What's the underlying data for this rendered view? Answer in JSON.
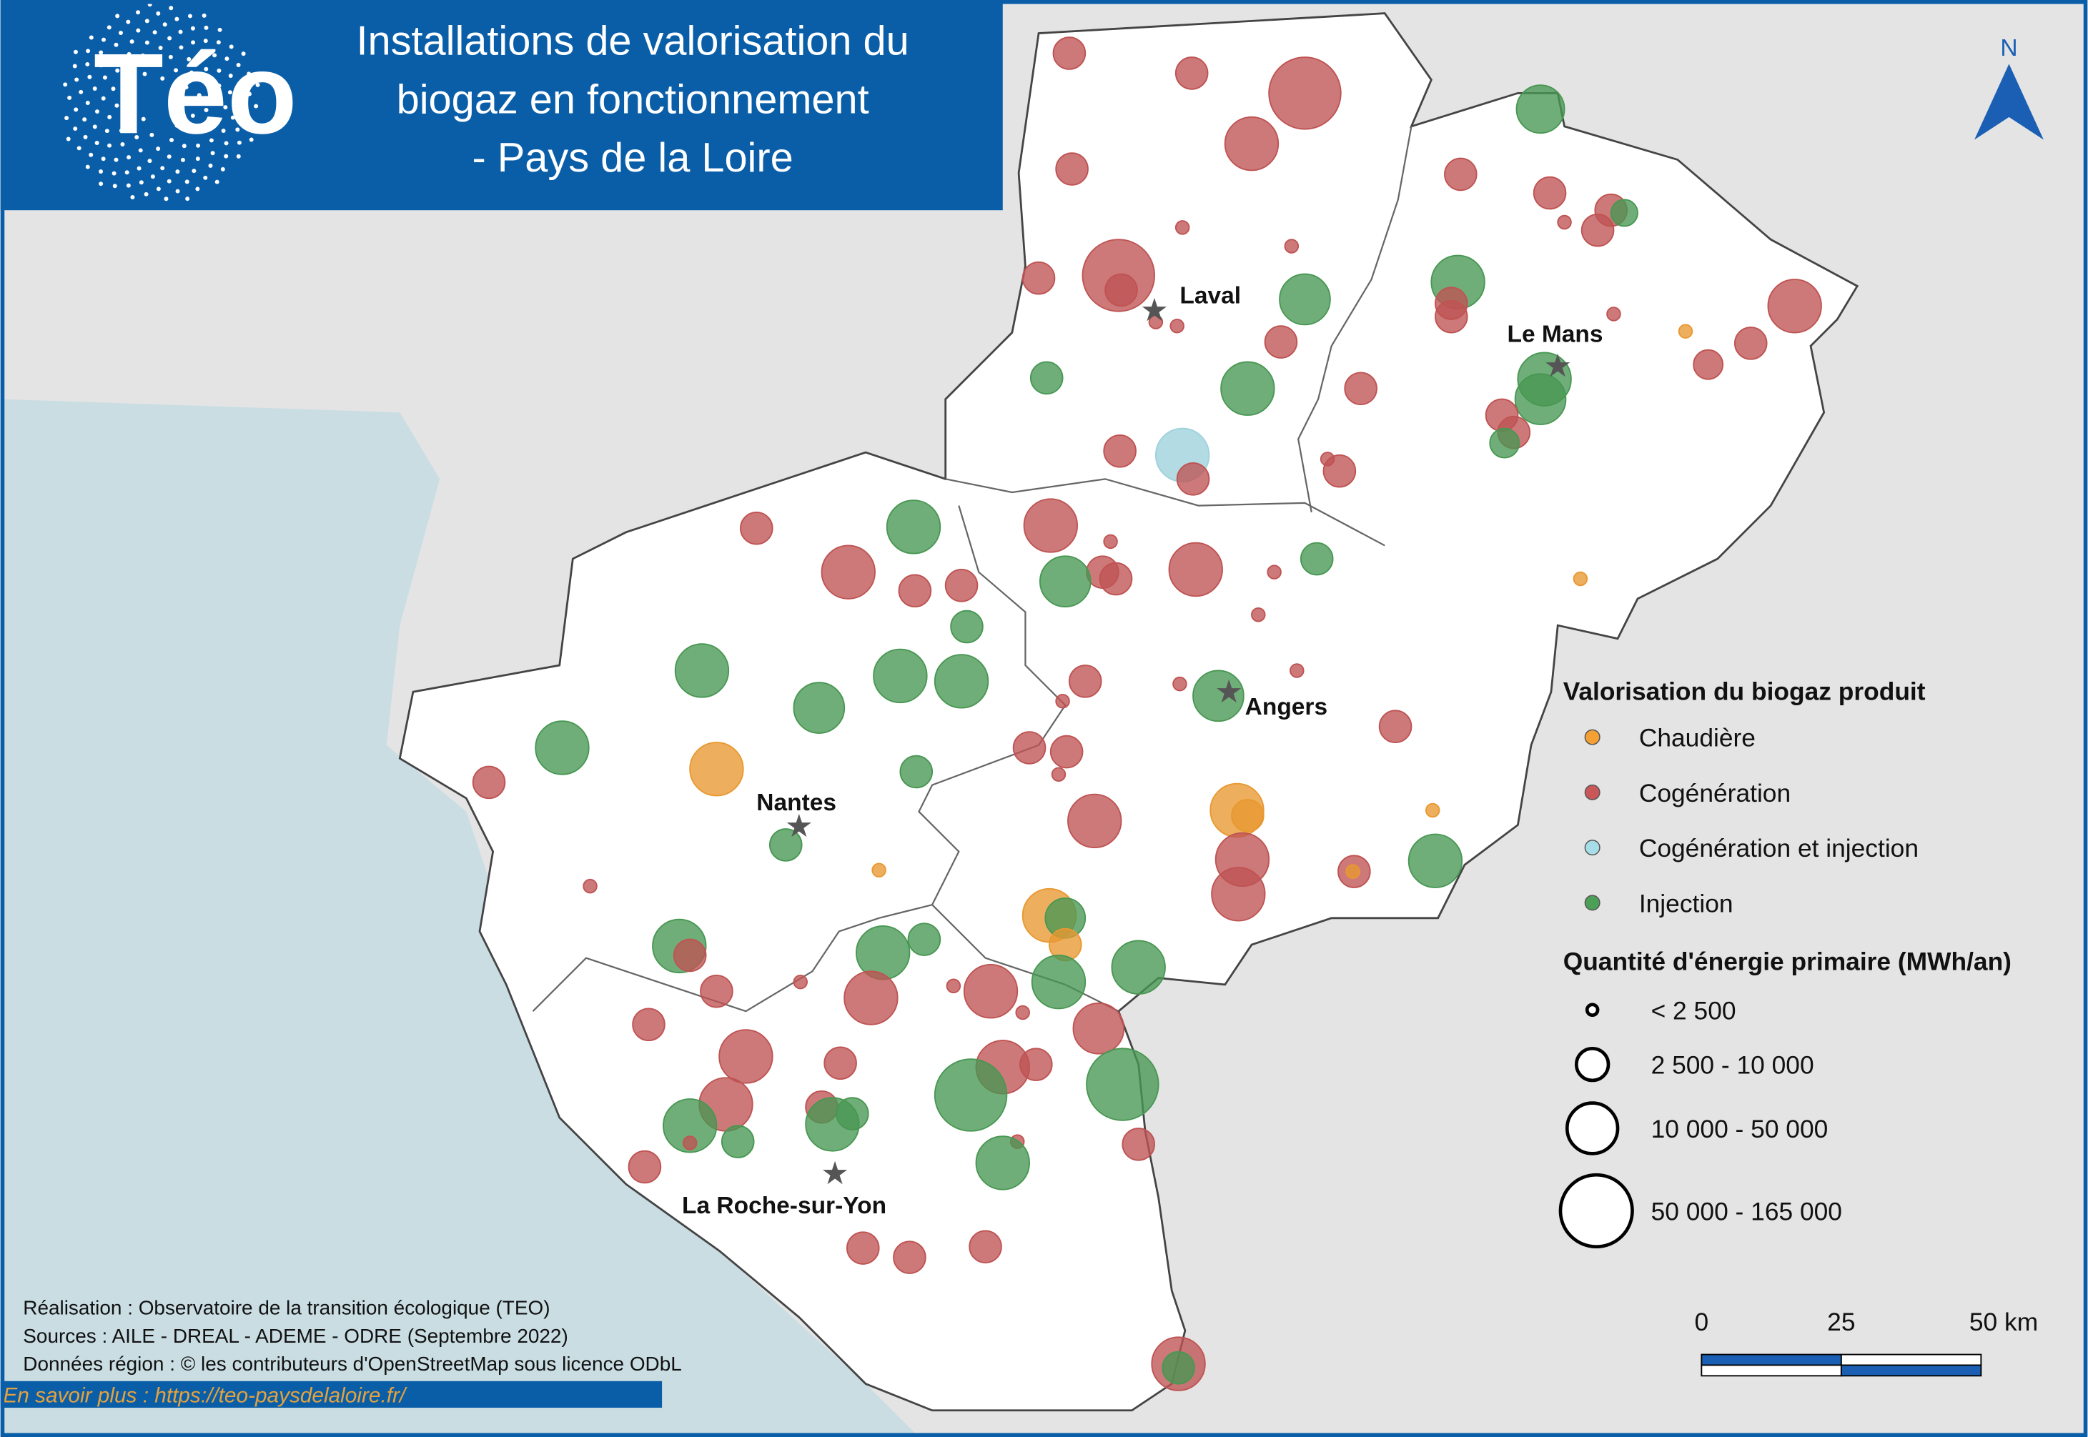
{
  "header": {
    "logo": "Téo",
    "title_lines": [
      "Installations de valorisation du",
      "biogaz en fonctionnement",
      "- Pays de la Loire"
    ]
  },
  "north": "N",
  "cities": [
    "Laval",
    "Le Mans",
    "Angers",
    "Nantes",
    "La Roche-sur-Yon"
  ],
  "legend": {
    "type_title": "Valorisation du biogaz produit",
    "types": [
      {
        "label": "Chaudière",
        "color": "#f5a033"
      },
      {
        "label": "Cogénération",
        "color": "#c95757"
      },
      {
        "label": "Cogénération et injection",
        "color": "#a6dde8"
      },
      {
        "label": "Injection",
        "color": "#4c9f57"
      }
    ],
    "size_title": "Quantité d'énergie primaire (MWh/an)",
    "sizes": [
      "< 2 500",
      "2 500 - 10 000",
      "10 000 - 50 000",
      "50 000 - 165 000"
    ]
  },
  "credits": [
    "Réalisation : Observatoire de la transition écologique (TEO)",
    "Sources : AILE - DREAL - ADEME - ODRE (Septembre 2022)",
    "Données région : © les contributeurs d'OpenStreetMap sous licence ODbL"
  ],
  "link": "En savoir plus : https://teo-paysdelaloire.fr/",
  "scale": {
    "labels": [
      "0",
      "25",
      "50 km"
    ]
  }
}
